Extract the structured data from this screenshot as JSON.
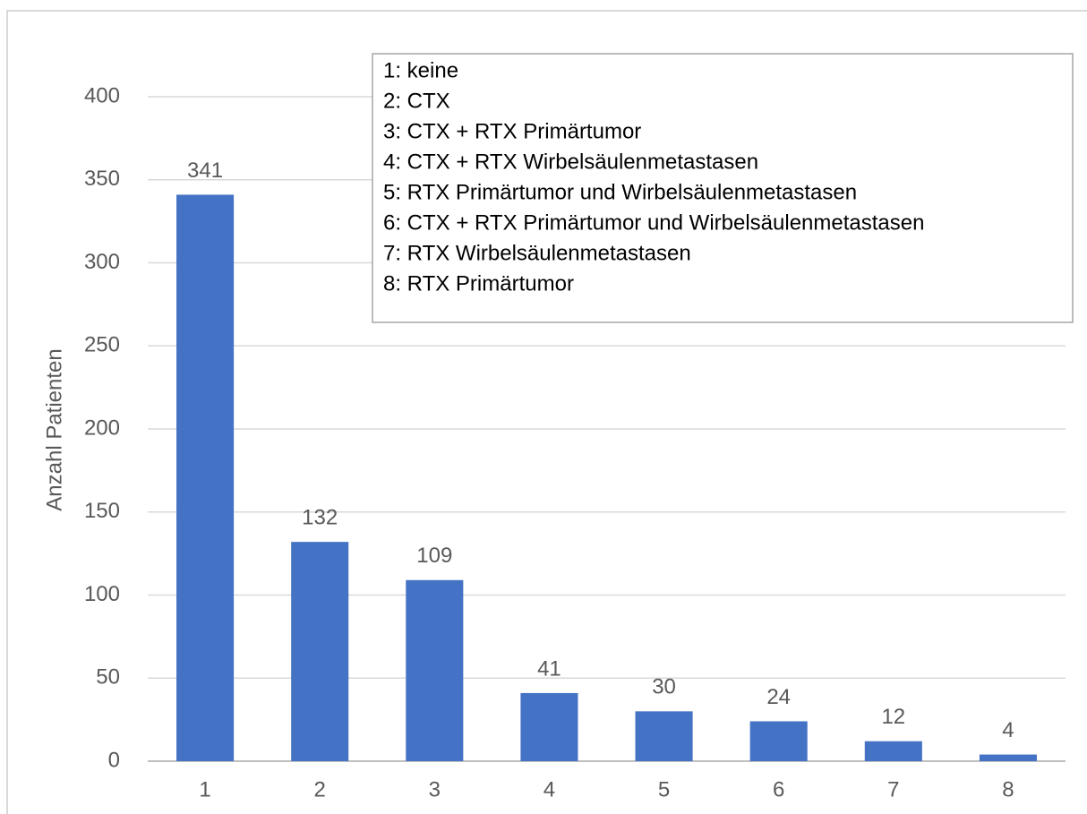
{
  "chart_data": {
    "type": "bar",
    "y_axis_label": "Anzahl Patienten",
    "categories": [
      "1",
      "2",
      "3",
      "4",
      "5",
      "6",
      "7",
      "8"
    ],
    "values": [
      341,
      132,
      109,
      41,
      30,
      24,
      12,
      4
    ],
    "color": "#4472c4",
    "ylim": [
      0,
      400
    ],
    "yticks": [
      0,
      50,
      100,
      150,
      200,
      250,
      300,
      350,
      400
    ],
    "grid": true,
    "annotations": [
      "1: keine",
      "2: CTX",
      "3: CTX + RTX Primärtumor",
      "4: CTX + RTX Wirbelsäulenmetastasen",
      "5: RTX Primärtumor und Wirbelsäulenmetastasen",
      "6: CTX + RTX Primärtumor und Wirbelsäulenmetastasen",
      "7: RTX Wirbelsäulenmetastasen",
      "8: RTX Primärtumor"
    ]
  }
}
